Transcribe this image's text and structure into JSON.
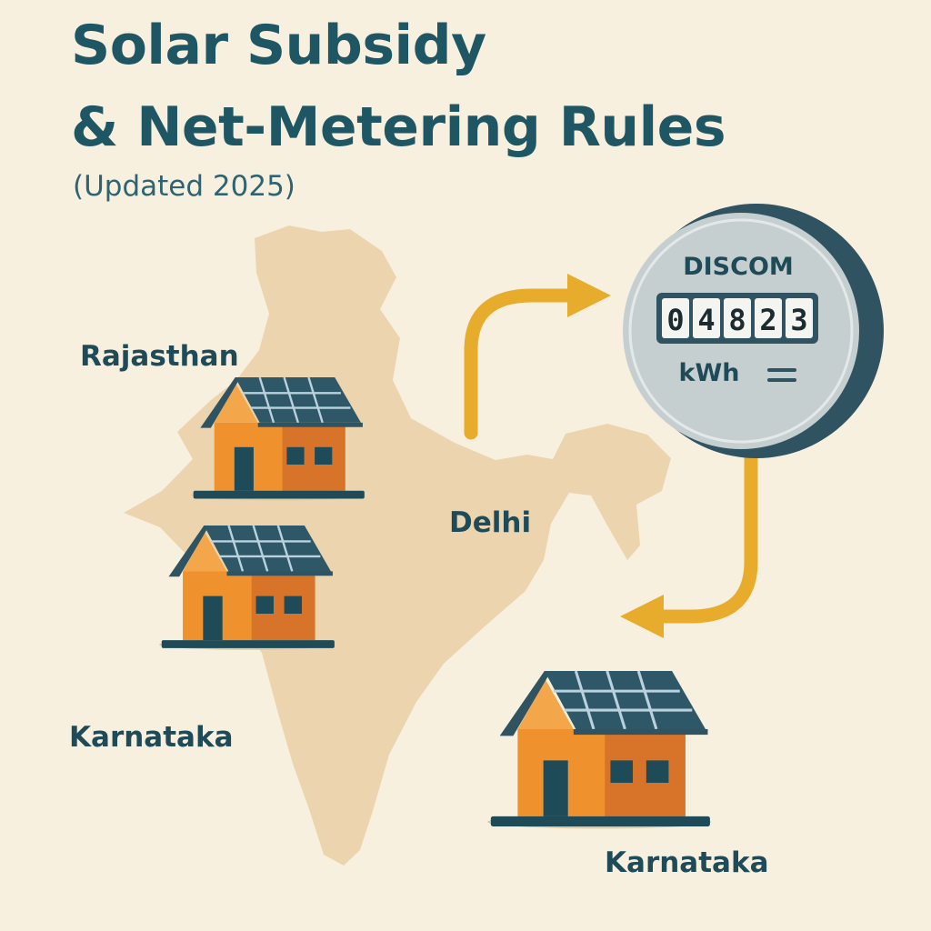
{
  "title": {
    "line1": "Solar Subsidy",
    "line2": "& Net-Metering Rules",
    "subtitle": "(Updated 2025)"
  },
  "regions": {
    "rajasthan": "Rajasthan",
    "delhi": "Delhi",
    "karnataka_left": "Karnataka",
    "karnataka_right": "Karnataka"
  },
  "meter": {
    "label": "DISCOM",
    "digits": [
      "0",
      "4",
      "8",
      "2",
      "3"
    ],
    "unit": "kWh"
  },
  "colors": {
    "background": "#f8f0df",
    "map": "#ecd5ae",
    "title": "#1f5664",
    "arrow": "#e8ac2c",
    "house_wall": "#ef922e",
    "house_wall_dark": "#d8742a",
    "roof_panel": "#2e5868",
    "meter_face": "#c6cfd0",
    "meter_ring": "#2f5361"
  },
  "icons": {
    "map": "india-map-icon",
    "meter": "electricity-meter-icon",
    "house": "solar-house-icon",
    "arrow": "curved-arrow-icon"
  }
}
